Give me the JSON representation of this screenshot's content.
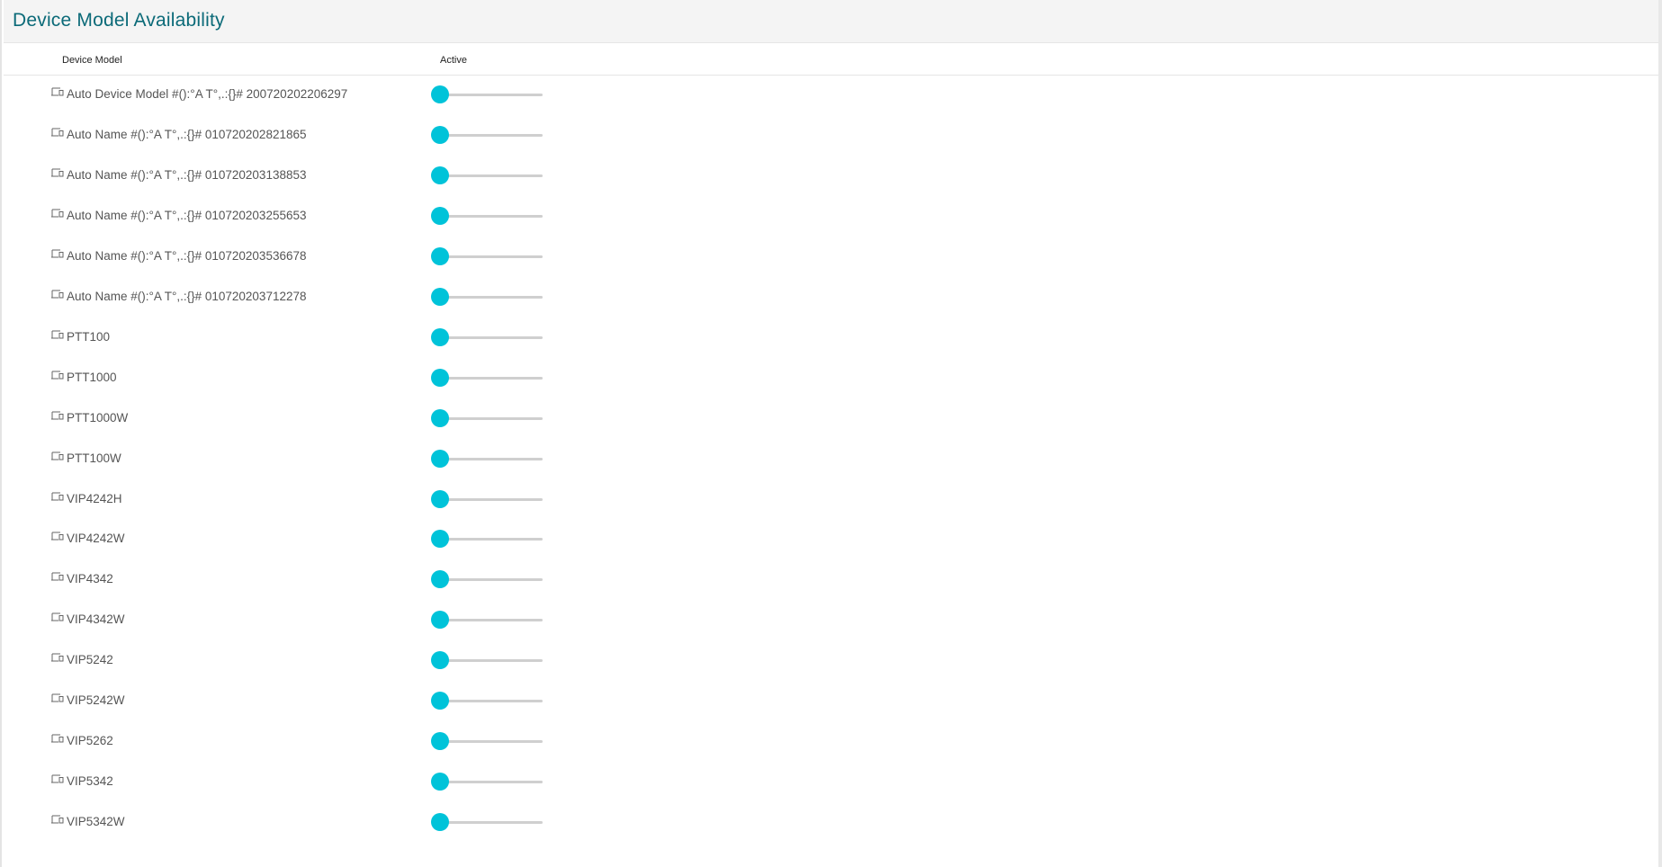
{
  "header": {
    "title": "Device Model Availability"
  },
  "columns": {
    "device_model": "Device Model",
    "active": "Active"
  },
  "colors": {
    "accent": "#00c3d9",
    "title": "#0b6a78",
    "track": "#cfcfcf"
  },
  "row_icon": "device-icon",
  "rows": [
    {
      "name": "Auto Device Model #():°A T°,.:{}# 200720202206297",
      "active": false
    },
    {
      "name": "Auto Name #():°A T°,.:{}# 010720202821865",
      "active": false
    },
    {
      "name": "Auto Name #():°A T°,.:{}# 010720203138853",
      "active": false
    },
    {
      "name": "Auto Name #():°A T°,.:{}# 010720203255653",
      "active": false
    },
    {
      "name": "Auto Name #():°A T°,.:{}# 010720203536678",
      "active": false
    },
    {
      "name": "Auto Name #():°A T°,.:{}# 010720203712278",
      "active": false
    },
    {
      "name": "PTT100",
      "active": false
    },
    {
      "name": "PTT1000",
      "active": false
    },
    {
      "name": "PTT1000W",
      "active": false
    },
    {
      "name": "PTT100W",
      "active": false
    },
    {
      "name": "VIP4242H",
      "active": false
    },
    {
      "name": "VIP4242W",
      "active": false
    },
    {
      "name": "VIP4342",
      "active": false
    },
    {
      "name": "VIP4342W",
      "active": false
    },
    {
      "name": "VIP5242",
      "active": false
    },
    {
      "name": "VIP5242W",
      "active": false
    },
    {
      "name": "VIP5262",
      "active": false
    },
    {
      "name": "VIP5342",
      "active": false
    },
    {
      "name": "VIP5342W",
      "active": false
    }
  ]
}
